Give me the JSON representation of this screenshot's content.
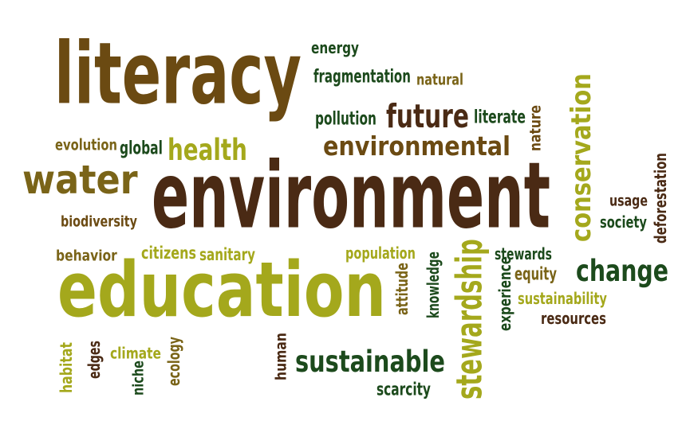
{
  "colors": {
    "dark_brown": "#4a2a14",
    "brown": "#6b4a12",
    "olive_brown": "#7a6418",
    "lime": "#a4a81c",
    "dark_green": "#1c4a1c"
  },
  "words": [
    {
      "text": "literacy",
      "color": "#6b4a12",
      "size": "huge"
    },
    {
      "text": "environment",
      "color": "#4a2a14",
      "size": "huge"
    },
    {
      "text": "education",
      "color": "#a4a81c",
      "size": "huge"
    },
    {
      "text": "water",
      "color": "#7a6418",
      "size": "large"
    },
    {
      "text": "environmental",
      "color": "#6b4a12",
      "size": "medium"
    },
    {
      "text": "future",
      "color": "#4a2a14",
      "size": "medium"
    },
    {
      "text": "health",
      "color": "#a4a81c",
      "size": "medium"
    },
    {
      "text": "conservation",
      "color": "#a4a81c",
      "size": "medium",
      "orientation": "vertical"
    },
    {
      "text": "stewardship",
      "color": "#a4a81c",
      "size": "medium",
      "orientation": "vertical"
    },
    {
      "text": "sustainable",
      "color": "#1c4a1c",
      "size": "medium"
    },
    {
      "text": "change",
      "color": "#1c4a1c",
      "size": "medium"
    },
    {
      "text": "energy",
      "color": "#1c4a1c",
      "size": "small"
    },
    {
      "text": "fragmentation",
      "color": "#1c4a1c",
      "size": "small"
    },
    {
      "text": "natural",
      "color": "#7a6418",
      "size": "small"
    },
    {
      "text": "pollution",
      "color": "#1c4a1c",
      "size": "small"
    },
    {
      "text": "literate",
      "color": "#1c4a1c",
      "size": "small"
    },
    {
      "text": "nature",
      "color": "#6b4a12",
      "size": "small",
      "orientation": "vertical"
    },
    {
      "text": "evolution",
      "color": "#7a6418",
      "size": "small"
    },
    {
      "text": "global",
      "color": "#1c4a1c",
      "size": "small"
    },
    {
      "text": "biodiversity",
      "color": "#6b4a12",
      "size": "small"
    },
    {
      "text": "usage",
      "color": "#4a2a14",
      "size": "small"
    },
    {
      "text": "society",
      "color": "#1c4a1c",
      "size": "small"
    },
    {
      "text": "deforestation",
      "color": "#4a2a14",
      "size": "small",
      "orientation": "vertical"
    },
    {
      "text": "behavior",
      "color": "#7a6418",
      "size": "small"
    },
    {
      "text": "citizens",
      "color": "#a4a81c",
      "size": "small"
    },
    {
      "text": "sanitary",
      "color": "#a4a81c",
      "size": "small"
    },
    {
      "text": "population",
      "color": "#a4a81c",
      "size": "small"
    },
    {
      "text": "stewards",
      "color": "#1c4a1c",
      "size": "small"
    },
    {
      "text": "equity",
      "color": "#7a6418",
      "size": "small"
    },
    {
      "text": "sustainability",
      "color": "#a4a81c",
      "size": "small"
    },
    {
      "text": "resources",
      "color": "#4a2a14",
      "size": "small"
    },
    {
      "text": "attitude",
      "color": "#7a6418",
      "size": "small",
      "orientation": "vertical"
    },
    {
      "text": "knowledge",
      "color": "#1c4a1c",
      "size": "small",
      "orientation": "vertical"
    },
    {
      "text": "experience",
      "color": "#1c4a1c",
      "size": "small",
      "orientation": "vertical"
    },
    {
      "text": "habitat",
      "color": "#a4a81c",
      "size": "small",
      "orientation": "vertical"
    },
    {
      "text": "edges",
      "color": "#4a2a14",
      "size": "small",
      "orientation": "vertical"
    },
    {
      "text": "climate",
      "color": "#a4a81c",
      "size": "small"
    },
    {
      "text": "niche",
      "color": "#1c4a1c",
      "size": "small",
      "orientation": "vertical"
    },
    {
      "text": "ecology",
      "color": "#7a6418",
      "size": "small",
      "orientation": "vertical"
    },
    {
      "text": "human",
      "color": "#4a2a14",
      "size": "small",
      "orientation": "vertical"
    },
    {
      "text": "scarcity",
      "color": "#1c4a1c",
      "size": "small"
    }
  ]
}
